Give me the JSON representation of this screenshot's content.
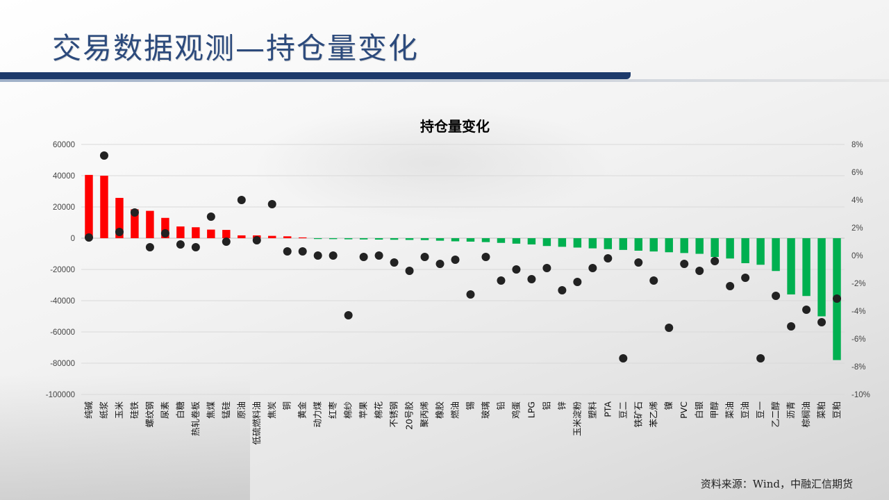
{
  "page": {
    "title": "交易数据观测—持仓量变化",
    "source": "资料来源：Wind，中融汇信期货"
  },
  "colors": {
    "positive_bar": "#ff0000",
    "negative_bar": "#00b050",
    "dot": "#222222",
    "title": "#2c4a7c",
    "title_bar": "#1d3a6b"
  },
  "chart_data": {
    "type": "bar",
    "title": "持仓量变化",
    "categories": [
      "纯碱",
      "纸浆",
      "玉米",
      "硅铁",
      "螺纹钢",
      "尿素",
      "白糖",
      "热轧卷板",
      "焦煤",
      "锰硅",
      "原油",
      "低硫燃料油",
      "焦炭",
      "铜",
      "黄金",
      "动力煤",
      "红枣",
      "棉纱",
      "苹果",
      "棉花",
      "不锈钢",
      "20号胶",
      "聚丙烯",
      "橡胶",
      "燃油",
      "锡",
      "玻璃",
      "铅",
      "鸡蛋",
      "LPG",
      "铝",
      "锌",
      "玉米淀粉",
      "塑料",
      "PTA",
      "豆二",
      "铁矿石",
      "苯乙烯",
      "镍",
      "PVC",
      "白银",
      "甲醇",
      "菜油",
      "豆油",
      "豆一",
      "乙二醇",
      "沥青",
      "棕榈油",
      "菜粕",
      "豆粕"
    ],
    "series": [
      {
        "axis": "left",
        "color": "#ff0000",
        "values": [
          40500,
          40000,
          25800,
          18500,
          17500,
          13000,
          7500,
          7000,
          5500,
          5300,
          1800,
          1800,
          1500,
          1200,
          500,
          -500,
          -600,
          -700,
          -800,
          -900,
          -1000,
          -1100,
          -1200,
          -1600,
          -2000,
          -2200,
          -2500,
          -3000,
          -3500,
          -4000,
          -5000,
          -5500,
          -6000,
          -6500,
          -7000,
          -7500,
          -8000,
          -8500,
          -9000,
          -9500,
          -10000,
          -12000,
          -13000,
          -16000,
          -17000,
          -21000,
          -36000,
          -37000,
          -50000,
          -78000
        ]
      },
      {
        "axis": "right",
        "type": "scatter",
        "color": "#222222",
        "values": [
          0.013,
          0.072,
          0.017,
          0.031,
          0.006,
          0.016,
          0.008,
          0.006,
          0.028,
          0.01,
          0.04,
          0.011,
          0.037,
          0.003,
          0.003,
          0.0,
          0.0,
          -0.043,
          -0.001,
          0.0,
          -0.005,
          -0.011,
          -0.001,
          -0.006,
          -0.003,
          -0.028,
          -0.001,
          -0.018,
          -0.01,
          -0.017,
          -0.009,
          -0.025,
          -0.019,
          -0.009,
          -0.002,
          -0.074,
          -0.005,
          -0.018,
          -0.052,
          -0.006,
          -0.011,
          -0.004,
          -0.022,
          -0.016,
          -0.074,
          -0.029,
          -0.051,
          -0.039,
          -0.048,
          -0.031
        ]
      }
    ],
    "ylim_left": [
      -100000,
      60000
    ],
    "yticks_left": [
      "60000",
      "40000",
      "20000",
      "0",
      "-20000",
      "-40000",
      "-60000",
      "-80000",
      "-100000"
    ],
    "ylim_right": [
      -0.1,
      0.08
    ],
    "yticks_right": [
      "8%",
      "6%",
      "4%",
      "2%",
      "0%",
      "-2%",
      "-4%",
      "-6%",
      "-8%",
      "-10%"
    ],
    "grid": true,
    "legend": "none"
  }
}
